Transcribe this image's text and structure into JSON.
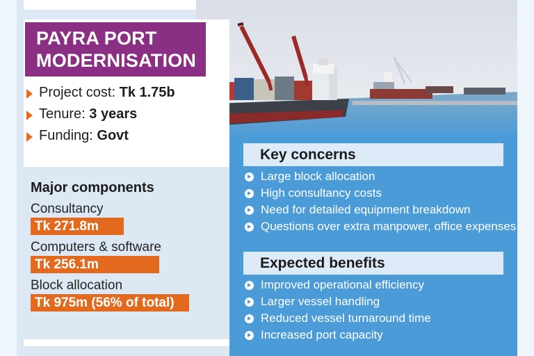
{
  "title": {
    "line1": "PAYRA PORT",
    "line2": "MODERNISATION"
  },
  "facts": [
    {
      "label": "Project cost: ",
      "value": "Tk 1.75b"
    },
    {
      "label": "Tenure: ",
      "value": "3 years"
    },
    {
      "label": "Funding: ",
      "value": "Govt"
    }
  ],
  "components": {
    "heading": "Major components",
    "items": [
      {
        "label": "Consultancy",
        "amount": "Tk 271.8m"
      },
      {
        "label": "Computers & software",
        "amount": "Tk 256.1m"
      },
      {
        "label": "Block allocation",
        "amount": "Tk 975m (56% of total)"
      }
    ]
  },
  "concerns": {
    "heading": "Key concerns",
    "items": [
      "Large block allocation",
      "High consultancy costs",
      "Need for detailed equipment breakdown",
      "Questions over extra manpower, office expenses"
    ]
  },
  "benefits": {
    "heading": "Expected benefits",
    "items": [
      "Improved operational efficiency",
      "Larger vessel handling",
      "Reduced vessel turnaround time",
      "Increased port capacity"
    ]
  },
  "colors": {
    "title_bg": "#8a2f84",
    "accent_orange": "#e2691e",
    "panel_blue": "#4a9bd8",
    "header_light": "#ddeaf7"
  },
  "photo": {
    "subject": "cargo-ships-at-port"
  }
}
